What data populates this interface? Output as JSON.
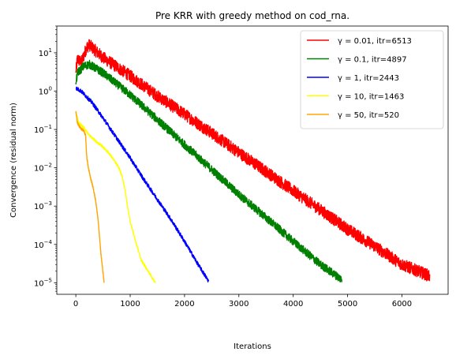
{
  "chart_data": {
    "type": "line",
    "title": "Pre KRR with greedy method on cod_rna.",
    "xlabel": "Iterations",
    "ylabel": "Convergence (residual norm)",
    "xlim": [
      -350,
      6850
    ],
    "ylim": [
      5e-06,
      50
    ],
    "yscale": "log",
    "x_ticks": [
      0,
      1000,
      2000,
      3000,
      4000,
      5000,
      6000
    ],
    "y_ticks": [
      {
        "value": 1e-05,
        "base": "10",
        "exp": "−5"
      },
      {
        "value": 0.0001,
        "base": "10",
        "exp": "−4"
      },
      {
        "value": 0.001,
        "base": "10",
        "exp": "−3"
      },
      {
        "value": 0.01,
        "base": "10",
        "exp": "−2"
      },
      {
        "value": 0.1,
        "base": "10",
        "exp": "−1"
      },
      {
        "value": 1,
        "base": "10",
        "exp": "0"
      },
      {
        "value": 10,
        "base": "10",
        "exp": "1"
      }
    ],
    "grid": false,
    "legend_position": "top-right",
    "series": [
      {
        "name": "γ = 0.01, itr=6513",
        "color": "#ff0000",
        "noise": 0.16,
        "points": [
          [
            0,
            3.0
          ],
          [
            30,
            7.0
          ],
          [
            100,
            5.5
          ],
          [
            200,
            14.0
          ],
          [
            250,
            16.0
          ],
          [
            500,
            7.5
          ],
          [
            1000,
            2.5
          ],
          [
            1500,
            0.75
          ],
          [
            2000,
            0.25
          ],
          [
            2500,
            0.08
          ],
          [
            3000,
            0.025
          ],
          [
            3500,
            0.008
          ],
          [
            4000,
            0.0025
          ],
          [
            4500,
            0.0008
          ],
          [
            5000,
            0.00025
          ],
          [
            5500,
            9e-05
          ],
          [
            6000,
            3e-05
          ],
          [
            6513,
            1.5e-05
          ]
        ]
      },
      {
        "name": "γ = 0.1, itr=4897",
        "color": "#008000",
        "noise": 0.11,
        "points": [
          [
            0,
            1.5
          ],
          [
            30,
            3.0
          ],
          [
            150,
            4.5
          ],
          [
            250,
            5.0
          ],
          [
            500,
            3.0
          ],
          [
            1000,
            0.8
          ],
          [
            1500,
            0.18
          ],
          [
            2000,
            0.04
          ],
          [
            2500,
            0.009
          ],
          [
            3000,
            0.002
          ],
          [
            3500,
            0.0005
          ],
          [
            4000,
            0.00012
          ],
          [
            4500,
            3e-05
          ],
          [
            4897,
            1.2e-05
          ]
        ]
      },
      {
        "name": "γ = 1, itr=2443",
        "color": "#0000ff",
        "noise": 0.05,
        "points": [
          [
            0,
            1.2
          ],
          [
            100,
            1.0
          ],
          [
            300,
            0.5
          ],
          [
            500,
            0.2
          ],
          [
            750,
            0.06
          ],
          [
            1000,
            0.018
          ],
          [
            1250,
            0.005
          ],
          [
            1500,
            0.0015
          ],
          [
            1750,
            0.00045
          ],
          [
            2000,
            0.00012
          ],
          [
            2250,
            3e-05
          ],
          [
            2443,
            1.1e-05
          ]
        ]
      },
      {
        "name": "γ = 10, itr=1463",
        "color": "#ffff00",
        "noise": 0.03,
        "points": [
          [
            0,
            0.3
          ],
          [
            50,
            0.15
          ],
          [
            100,
            0.13
          ],
          [
            150,
            0.11
          ],
          [
            250,
            0.07
          ],
          [
            400,
            0.045
          ],
          [
            500,
            0.035
          ],
          [
            600,
            0.025
          ],
          [
            700,
            0.016
          ],
          [
            800,
            0.0095
          ],
          [
            850,
            0.006
          ],
          [
            900,
            0.003
          ],
          [
            950,
            0.001
          ],
          [
            1000,
            0.0004
          ],
          [
            1100,
            0.00012
          ],
          [
            1200,
            4e-05
          ],
          [
            1350,
            1.8e-05
          ],
          [
            1463,
            1e-05
          ]
        ]
      },
      {
        "name": "γ = 50, itr=520",
        "color": "#ffa500",
        "noise": 0.03,
        "points": [
          [
            0,
            0.3
          ],
          [
            30,
            0.15
          ],
          [
            80,
            0.11
          ],
          [
            120,
            0.1
          ],
          [
            150,
            0.09
          ],
          [
            180,
            0.07
          ],
          [
            200,
            0.02
          ],
          [
            230,
            0.01
          ],
          [
            270,
            0.0055
          ],
          [
            320,
            0.003
          ],
          [
            360,
            0.0015
          ],
          [
            400,
            0.0006
          ],
          [
            430,
            0.0002
          ],
          [
            460,
            6e-05
          ],
          [
            490,
            2.5e-05
          ],
          [
            520,
            1e-05
          ]
        ]
      }
    ]
  }
}
